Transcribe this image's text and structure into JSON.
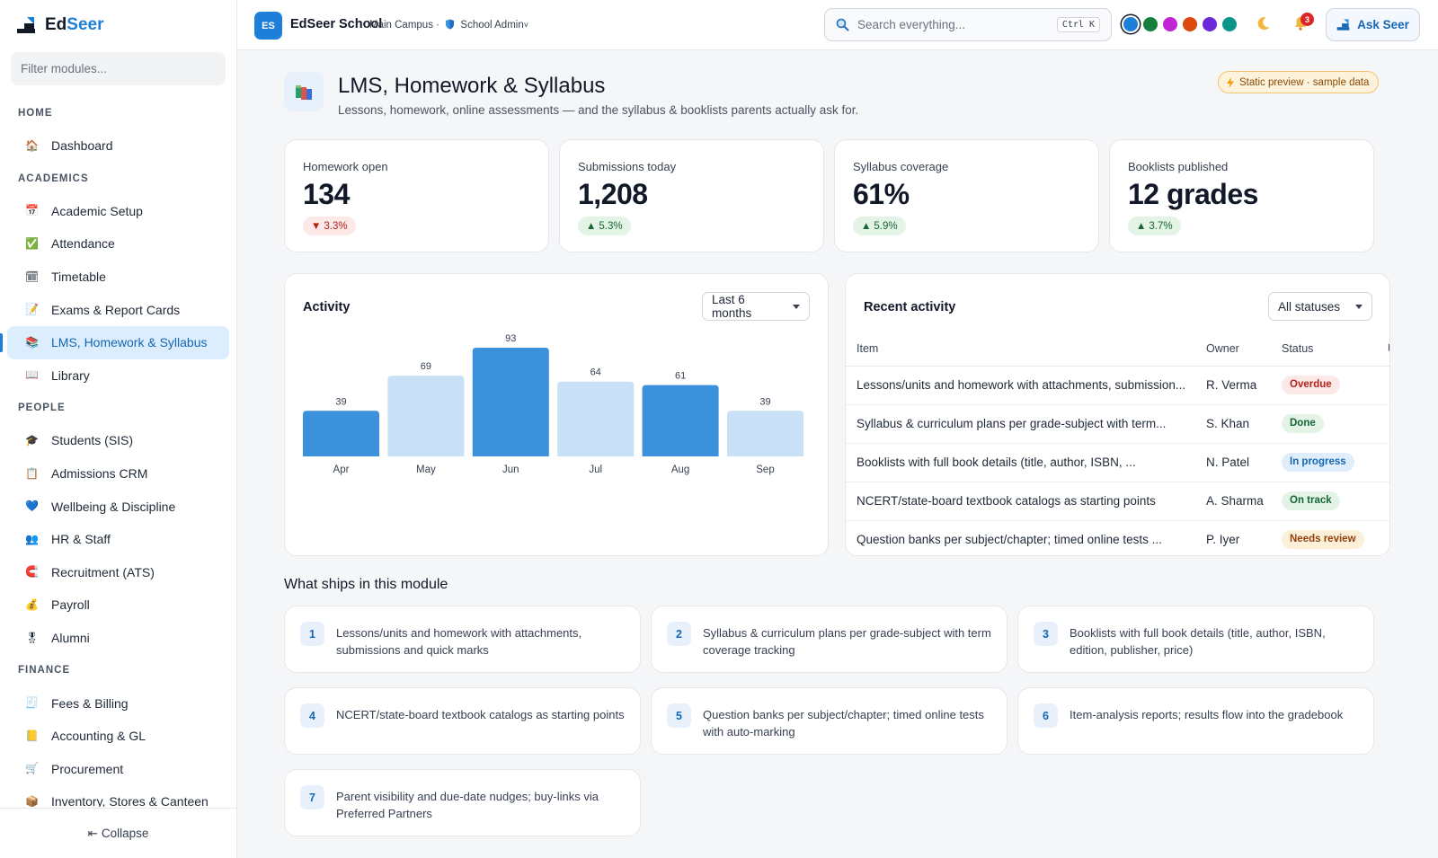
{
  "brand": {
    "prefix": "Ed",
    "suffix": "Seer"
  },
  "sidebar": {
    "filter_placeholder": "Filter modules...",
    "sections": [
      {
        "label": "HOME",
        "items": [
          {
            "label": "Dashboard",
            "icon": "house-icon"
          }
        ]
      },
      {
        "label": "ACADEMICS",
        "items": [
          {
            "label": "Academic Setup",
            "icon": "calendar-icon"
          },
          {
            "label": "Attendance",
            "icon": "check-box-icon"
          },
          {
            "label": "Timetable",
            "icon": "calendar-grid-icon"
          },
          {
            "label": "Exams & Report Cards",
            "icon": "report-icon"
          },
          {
            "label": "LMS, Homework & Syllabus",
            "icon": "books-icon",
            "active": true
          },
          {
            "label": "Library",
            "icon": "open-book-icon"
          }
        ]
      },
      {
        "label": "PEOPLE",
        "items": [
          {
            "label": "Students (SIS)",
            "icon": "graduation-cap-icon"
          },
          {
            "label": "Admissions CRM",
            "icon": "clipboard-icon"
          },
          {
            "label": "Wellbeing & Discipline",
            "icon": "heart-icon"
          },
          {
            "label": "HR & Staff",
            "icon": "people-icon"
          },
          {
            "label": "Recruitment (ATS)",
            "icon": "magnet-icon"
          },
          {
            "label": "Payroll",
            "icon": "money-bag-icon"
          },
          {
            "label": "Alumni",
            "icon": "medal-icon"
          }
        ]
      },
      {
        "label": "FINANCE",
        "items": [
          {
            "label": "Fees & Billing",
            "icon": "receipt-icon"
          },
          {
            "label": "Accounting & GL",
            "icon": "ledger-icon"
          },
          {
            "label": "Procurement",
            "icon": "cart-icon"
          },
          {
            "label": "Inventory, Stores & Canteen",
            "icon": "package-icon"
          }
        ]
      }
    ],
    "collapse_label": "Collapse"
  },
  "topbar": {
    "org_initials": "ES",
    "org_name": "EdSeer School",
    "campus": "Main Campus",
    "separator": "·",
    "role": "School Admin",
    "role_caret": "˅",
    "search_placeholder": "Search everything...",
    "shortcut": "Ctrl K",
    "theme_colors": [
      "#1e7fd8",
      "#15803d",
      "#c026d3",
      "#dc4a0e",
      "#6d28d9",
      "#0d9488"
    ],
    "notification_count": "3",
    "ask_label": "Ask Seer"
  },
  "page": {
    "title": "LMS, Homework & Syllabus",
    "subtitle": "Lessons, homework, online assessments — and the syllabus & booklists parents actually ask for.",
    "preview_badge": "Static preview · sample data"
  },
  "kpis": [
    {
      "label": "Homework open",
      "value": "134",
      "delta": "3.3%",
      "direction": "down",
      "arrow": "▼"
    },
    {
      "label": "Submissions today",
      "value": "1,208",
      "delta": "5.3%",
      "direction": "up",
      "arrow": "▲"
    },
    {
      "label": "Syllabus coverage",
      "value": "61%",
      "delta": "5.9%",
      "direction": "up",
      "arrow": "▲"
    },
    {
      "label": "Booklists published",
      "value": "12 grades",
      "delta": "3.7%",
      "direction": "up",
      "arrow": "▲"
    }
  ],
  "activity": {
    "title": "Activity",
    "range_label": "Last 6 months"
  },
  "chart_data": {
    "type": "bar",
    "title": "Activity",
    "categories": [
      "Apr",
      "May",
      "Jun",
      "Jul",
      "Aug",
      "Sep"
    ],
    "values": [
      39,
      69,
      93,
      64,
      61,
      39
    ],
    "bar_colors": [
      "#3b91dc",
      "#c8e1f6",
      "#3b91dc",
      "#c8e1f6",
      "#3b91dc",
      "#c8e1f6"
    ],
    "xlabel": "",
    "ylabel": "",
    "ylim": [
      0,
      93
    ],
    "grid": false
  },
  "recent": {
    "title": "Recent activity",
    "filter_label": "All statuses",
    "columns": [
      "Item",
      "Owner",
      "Status",
      "U"
    ],
    "rows": [
      {
        "item": "Lessons/units and homework with attachments, submission...",
        "owner": "R. Verma",
        "status": "Overdue",
        "bg": "#fde8e8",
        "fg": "#b42318"
      },
      {
        "item": "Syllabus & curriculum plans per grade-subject with term...",
        "owner": "S. Khan",
        "status": "Done",
        "bg": "#e3f4e7",
        "fg": "#166534"
      },
      {
        "item": "Booklists with full book details (title, author, ISBN, ...",
        "owner": "N. Patel",
        "status": "In progress",
        "bg": "#e0eefc",
        "fg": "#1566b3"
      },
      {
        "item": "NCERT/state-board textbook catalogs as starting points",
        "owner": "A. Sharma",
        "status": "On track",
        "bg": "#e3f4e7",
        "fg": "#166534"
      },
      {
        "item": "Question banks per subject/chapter; timed online tests ...",
        "owner": "P. Iyer",
        "status": "Needs review",
        "bg": "#fdf0d8",
        "fg": "#92400e"
      }
    ]
  },
  "features": {
    "title": "What ships in this module",
    "items": [
      {
        "num": "1",
        "text": "Lessons/units and homework with attachments, submissions and quick marks"
      },
      {
        "num": "2",
        "text": "Syllabus & curriculum plans per grade-subject with term coverage tracking"
      },
      {
        "num": "3",
        "text": "Booklists with full book details (title, author, ISBN, edition, publisher, price)"
      },
      {
        "num": "4",
        "text": "NCERT/state-board textbook catalogs as starting points"
      },
      {
        "num": "5",
        "text": "Question banks per subject/chapter; timed online tests with auto-marking"
      },
      {
        "num": "6",
        "text": "Item-analysis reports; results flow into the gradebook"
      },
      {
        "num": "7",
        "text": "Parent visibility and due-date nudges; buy-links via Preferred Partners"
      }
    ]
  }
}
